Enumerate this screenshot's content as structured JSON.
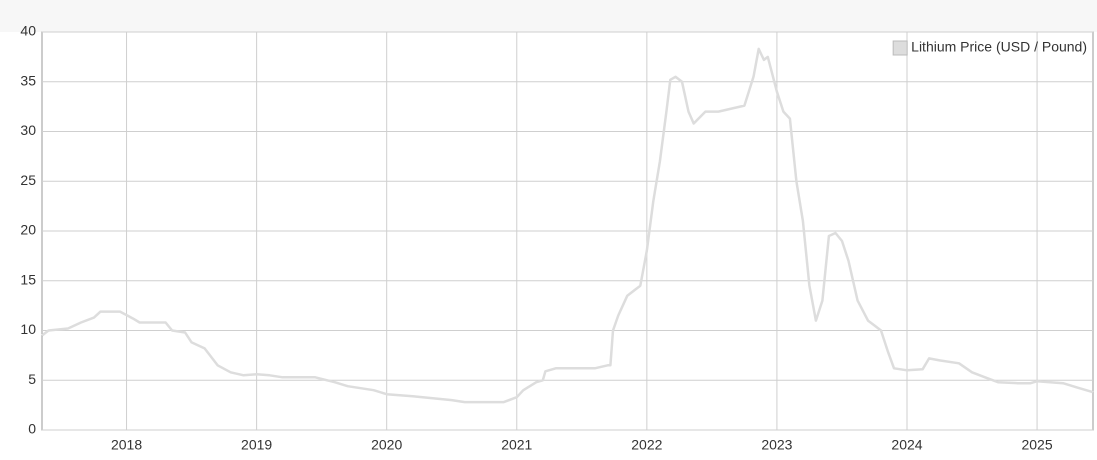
{
  "chart_data": {
    "type": "line",
    "series": [
      {
        "name": "Lithium Price (USD / Pound)",
        "color": "#dddddd",
        "x": [
          2017.35,
          2017.4,
          2017.55,
          2017.65,
          2017.75,
          2017.8,
          2017.95,
          2018.05,
          2018.1,
          2018.3,
          2018.35,
          2018.45,
          2018.5,
          2018.6,
          2018.7,
          2018.8,
          2018.9,
          2019.0,
          2019.1,
          2019.2,
          2019.45,
          2019.6,
          2019.7,
          2019.8,
          2019.9,
          2020.0,
          2020.2,
          2020.5,
          2020.6,
          2020.9,
          2021.0,
          2021.05,
          2021.15,
          2021.2,
          2021.22,
          2021.3,
          2021.6,
          2021.7,
          2021.72,
          2021.74,
          2021.78,
          2021.85,
          2021.95,
          2022.0,
          2022.05,
          2022.1,
          2022.15,
          2022.18,
          2022.22,
          2022.27,
          2022.32,
          2022.36,
          2022.45,
          2022.55,
          2022.65,
          2022.75,
          2022.82,
          2022.86,
          2022.9,
          2022.93,
          2023.0,
          2023.05,
          2023.1,
          2023.15,
          2023.2,
          2023.25,
          2023.3,
          2023.35,
          2023.4,
          2023.45,
          2023.5,
          2023.55,
          2023.62,
          2023.7,
          2023.75,
          2023.8,
          2023.85,
          2023.9,
          2024.0,
          2024.12,
          2024.17,
          2024.25,
          2024.4,
          2024.5,
          2024.6,
          2024.7,
          2024.85,
          2024.95,
          2025.0,
          2025.2,
          2025.3,
          2025.43
        ],
        "values": [
          9.5,
          10,
          10.2,
          10.8,
          11.3,
          11.9,
          11.9,
          11.2,
          10.8,
          10.8,
          10,
          9.8,
          8.8,
          8.2,
          6.5,
          5.8,
          5.5,
          5.6,
          5.5,
          5.3,
          5.3,
          4.8,
          4.4,
          4.2,
          4.0,
          3.6,
          3.4,
          3.0,
          2.8,
          2.8,
          3.3,
          4.0,
          4.8,
          5.0,
          5.9,
          6.2,
          6.2,
          6.5,
          6.5,
          10,
          11.5,
          13.5,
          14.5,
          18,
          23,
          27,
          32,
          35.2,
          35.5,
          35,
          32,
          30.8,
          32,
          32,
          32.3,
          32.6,
          35.5,
          38.3,
          37.2,
          37.5,
          34,
          32,
          31.3,
          25,
          21,
          14.5,
          11,
          13,
          19.5,
          19.8,
          19,
          17,
          13,
          11,
          10.5,
          10,
          8,
          6.2,
          6,
          6.1,
          7.2,
          7,
          6.7,
          5.8,
          5.3,
          4.8,
          4.7,
          4.7,
          4.9,
          4.7,
          4.3,
          3.8
        ]
      }
    ],
    "xlim": [
      2017.35,
      2025.43
    ],
    "xticks": [
      2018,
      2019,
      2020,
      2021,
      2022,
      2023,
      2024,
      2025
    ],
    "ylim": [
      0,
      40
    ],
    "yticks": [
      0,
      5,
      10,
      15,
      20,
      25,
      30,
      35,
      40
    ],
    "grid": true,
    "legend": "top-right"
  }
}
